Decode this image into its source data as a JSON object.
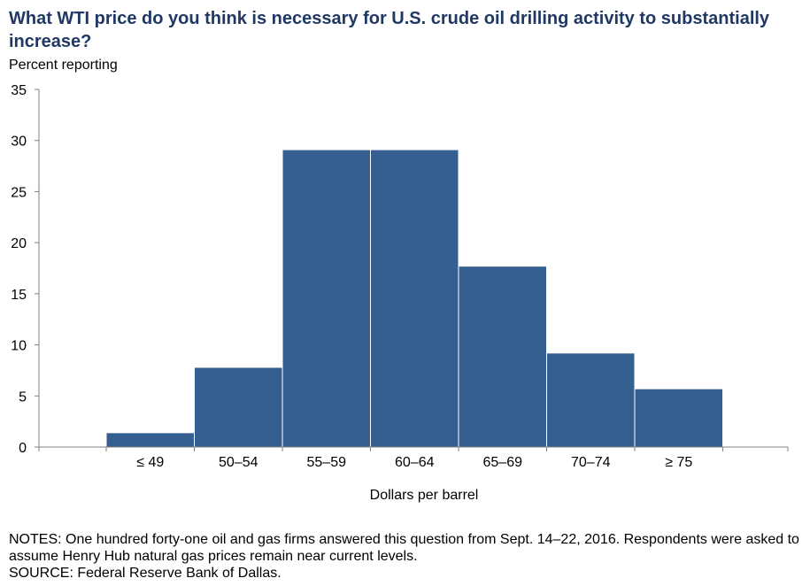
{
  "chart_data": {
    "type": "bar",
    "title": "What WTI price do you think is necessary for U.S. crude oil drilling activity to substantially increase?",
    "ylabel": "Percent reporting",
    "xlabel": "Dollars per barrel",
    "categories": [
      "≤ 49",
      "50–54",
      "55–59",
      "60–64",
      "65–69",
      "70–74",
      "≥ 75"
    ],
    "values": [
      1.4,
      7.8,
      29.1,
      29.1,
      17.7,
      9.2,
      5.7
    ],
    "ylim": [
      0,
      35
    ],
    "yticks": [
      0,
      5,
      10,
      15,
      20,
      25,
      30,
      35
    ],
    "bar_color": "#365f91",
    "grid": false,
    "legend": "none"
  },
  "notes": {
    "line1": "NOTES: One hundred forty-one oil and gas firms answered this question from Sept. 14–22, 2016. Respondents were asked to assume Henry Hub natural gas prices remain near current levels.",
    "source": "SOURCE: Federal Reserve Bank of Dallas."
  }
}
